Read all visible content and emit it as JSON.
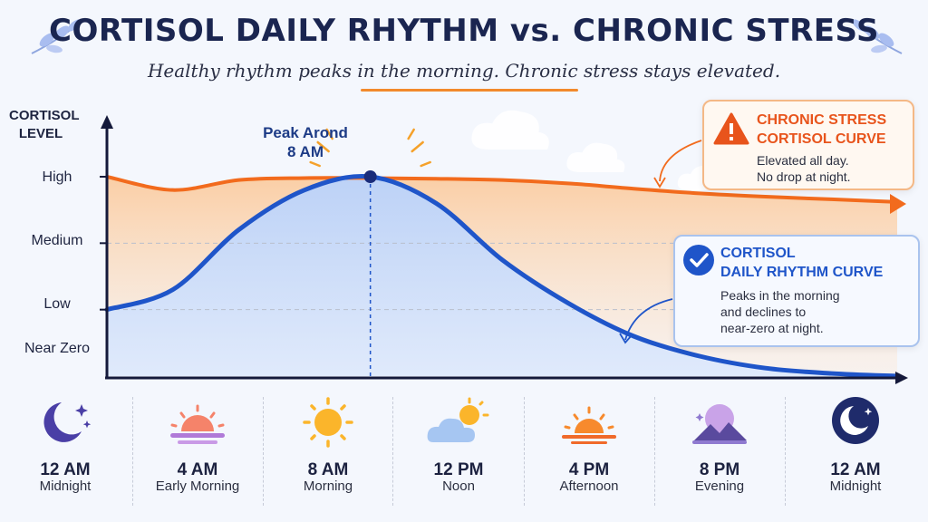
{
  "title": "CORTISOL DAILY RHYTHM vs. CHRONIC STRESS",
  "subtitle": "Healthy rhythm peaks in the morning. Chronic stress stays elevated.",
  "peak_annotation": [
    "Peak Arond",
    "8 AM"
  ],
  "stress_callout": {
    "title": [
      "CHRONIC STRESS",
      "CORTISOL CURVE"
    ],
    "body": [
      "Elevated all day.",
      "No drop at night."
    ],
    "icon": "warning-icon",
    "color": "#e8541c"
  },
  "rhythm_callout": {
    "title": [
      "CORTISOL",
      "DAILY RHYTHM CURVE"
    ],
    "body": [
      "Peaks in the morning",
      "and declines to",
      "near-zero at night."
    ],
    "icon": "check-icon",
    "color": "#1f55c9"
  },
  "time_axis": [
    {
      "time": "12 AM",
      "label": "Midnight",
      "icon": "moon-stars-icon"
    },
    {
      "time": "4 AM",
      "label": "Early Morning",
      "icon": "sunrise-icon"
    },
    {
      "time": "8 AM",
      "label": "Morning",
      "icon": "sun-icon"
    },
    {
      "time": "12 PM",
      "label": "Noon",
      "icon": "sun-cloud-icon"
    },
    {
      "time": "4 PM",
      "label": "Afternoon",
      "icon": "sunset-icon"
    },
    {
      "time": "8 PM",
      "label": "Evening",
      "icon": "dusk-mountains-icon"
    },
    {
      "time": "12 AM",
      "label": "Midnight",
      "icon": "moon-night-icon"
    }
  ],
  "chart_data": {
    "type": "line",
    "ylabel": "CORTISOL LEVEL",
    "y_levels": [
      "Near Zero",
      "Low",
      "Medium",
      "High"
    ],
    "ylim": [
      0,
      3
    ],
    "xlim": [
      0,
      24
    ],
    "grid": "dashed horizontal at Low and Medium",
    "series": [
      {
        "name": "CHRONIC STRESS CORTISOL CURVE",
        "color": "#f26b1d",
        "x": [
          0,
          2,
          4,
          6,
          8,
          10,
          12,
          14,
          16,
          18,
          20,
          22,
          24
        ],
        "y": [
          3.0,
          2.8,
          2.95,
          2.98,
          2.98,
          2.97,
          2.95,
          2.9,
          2.82,
          2.75,
          2.7,
          2.66,
          2.62
        ]
      },
      {
        "name": "CORTISOL DAILY RHYTHM CURVE",
        "color": "#1f55c9",
        "x": [
          0,
          2,
          4,
          6,
          8,
          10,
          12,
          14,
          16,
          18,
          20,
          22,
          24
        ],
        "y": [
          1.0,
          1.3,
          2.2,
          2.8,
          3.0,
          2.6,
          1.75,
          1.1,
          0.6,
          0.3,
          0.12,
          0.04,
          0.0
        ]
      }
    ]
  }
}
